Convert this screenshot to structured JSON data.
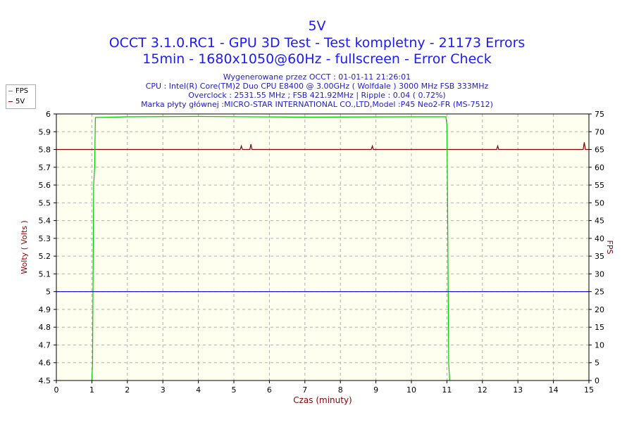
{
  "title": "5V",
  "subtitle1": "OCCT 3.1.0.RC1 - GPU 3D Test - Test kompletny - 21173 Errors",
  "subtitle2": "15min - 1680x1050@60Hz - fullscreen - Error Check",
  "info": [
    "Wygenerowane przez OCCT : 01-01-11 21:26:01",
    "CPU : Intel(R) Core(TM)2 Duo CPU E8400 @ 3.00GHz ( Wolfdale ) 3000 MHz FSB 333MHz",
    "Overclock : 2531.55 MHz ; FSB 421.92MHz | Ripple : 0.04 ( 0.72%)",
    "Marka płyty głównej :MICRO-STAR INTERNATIONAL CO.,LTD,Model :P45 Neo2-FR (MS-7512)"
  ],
  "legend": [
    {
      "name": "FPS",
      "color": "#00cc00"
    },
    {
      "name": "5V",
      "color": "#8b0000"
    }
  ],
  "colors": {
    "fps": "#00cc00",
    "volt": "#8b0000",
    "ref": "#0000cc",
    "plot_bg": "#fffff0",
    "grid": "#b0b0b0",
    "ylabel": "#8b0000",
    "xlabel": "#8b0000"
  },
  "chart_data": {
    "type": "line",
    "xlabel": "Czas (minuty)",
    "ylabel_left": "Wolty ( Volts )",
    "ylabel_right": "FPS",
    "xlim": [
      0,
      15
    ],
    "ylim_left": [
      4.5,
      6
    ],
    "ylim_right": [
      0,
      75
    ],
    "xticks": [
      "0",
      "1",
      "2",
      "3",
      "4",
      "5",
      "6",
      "7",
      "8",
      "9",
      "10",
      "11",
      "12",
      "13",
      "14",
      "15"
    ],
    "yticks_left": [
      "4.5",
      "4.6",
      "4.7",
      "4.8",
      "4.9",
      "5",
      "5.1",
      "5.2",
      "5.3",
      "5.4",
      "5.5",
      "5.6",
      "5.7",
      "5.8",
      "5.9",
      "6"
    ],
    "yticks_right": [
      "0",
      "5",
      "10",
      "15",
      "20",
      "25",
      "30",
      "35",
      "40",
      "45",
      "50",
      "55",
      "60",
      "65",
      "70",
      "75"
    ],
    "grid": true,
    "legend_position": "top-left",
    "series": [
      {
        "name": "5V",
        "axis": "left",
        "x": [
          0,
          5.18,
          5.21,
          5.24,
          5.45,
          5.48,
          5.51,
          8.87,
          8.9,
          8.93,
          12.4,
          12.43,
          12.46,
          14.84,
          14.87,
          14.9,
          15
        ],
        "y": [
          5.8,
          5.8,
          5.82,
          5.8,
          5.8,
          5.83,
          5.8,
          5.8,
          5.82,
          5.8,
          5.8,
          5.82,
          5.8,
          5.8,
          5.84,
          5.8,
          5.8
        ]
      },
      {
        "name": "FPS",
        "axis": "right",
        "x": [
          1.0,
          1.02,
          1.05,
          1.08,
          1.1,
          2,
          4,
          7,
          10,
          10.97,
          11.0,
          11.02,
          11.05,
          11.08
        ],
        "y": [
          0,
          5,
          55,
          60,
          74,
          74.2,
          74.3,
          74.1,
          74.2,
          74.2,
          72,
          50,
          5,
          0
        ]
      },
      {
        "name": "",
        "axis": "left",
        "x": [
          0,
          15
        ],
        "y": [
          5.0,
          5.0
        ]
      }
    ]
  }
}
